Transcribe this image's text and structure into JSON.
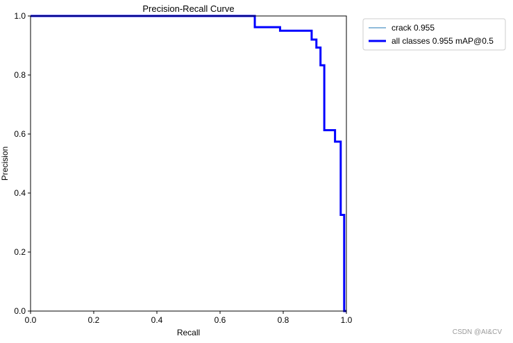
{
  "chart_data": {
    "type": "line",
    "title": "Precision-Recall Curve",
    "xlabel": "Recall",
    "ylabel": "Precision",
    "xlim": [
      0.0,
      1.0
    ],
    "ylim": [
      0.0,
      1.0
    ],
    "xticks": [
      "0.0",
      "0.2",
      "0.4",
      "0.6",
      "0.8",
      "1.0"
    ],
    "yticks": [
      "0.0",
      "0.2",
      "0.4",
      "0.6",
      "0.8",
      "1.0"
    ],
    "grid": false,
    "legend_position": "outside-top-right",
    "step": true,
    "series": [
      {
        "name": "crack 0.955",
        "color": "#1f77b4",
        "x": [
          0.0,
          0.71,
          0.71,
          0.79,
          0.79,
          0.89,
          0.89,
          0.905,
          0.905,
          0.918,
          0.918,
          0.93,
          0.93,
          0.964,
          0.964,
          0.982,
          0.982,
          0.993,
          0.993,
          1.0
        ],
        "y": [
          1.0,
          1.0,
          0.962,
          0.962,
          0.95,
          0.95,
          0.92,
          0.92,
          0.893,
          0.893,
          0.833,
          0.833,
          0.613,
          0.613,
          0.574,
          0.574,
          0.326,
          0.326,
          0.0,
          0.0
        ]
      },
      {
        "name": "all classes 0.955 mAP@0.5",
        "color": "#0000ff",
        "x": [
          0.0,
          0.71,
          0.71,
          0.79,
          0.79,
          0.89,
          0.89,
          0.905,
          0.905,
          0.918,
          0.918,
          0.93,
          0.93,
          0.964,
          0.964,
          0.982,
          0.982,
          0.993,
          0.993,
          1.0
        ],
        "y": [
          1.0,
          1.0,
          0.962,
          0.962,
          0.95,
          0.95,
          0.92,
          0.92,
          0.893,
          0.893,
          0.833,
          0.833,
          0.613,
          0.613,
          0.574,
          0.574,
          0.326,
          0.326,
          0.0,
          0.0
        ]
      }
    ]
  },
  "watermark": "CSDN @AI&CV"
}
